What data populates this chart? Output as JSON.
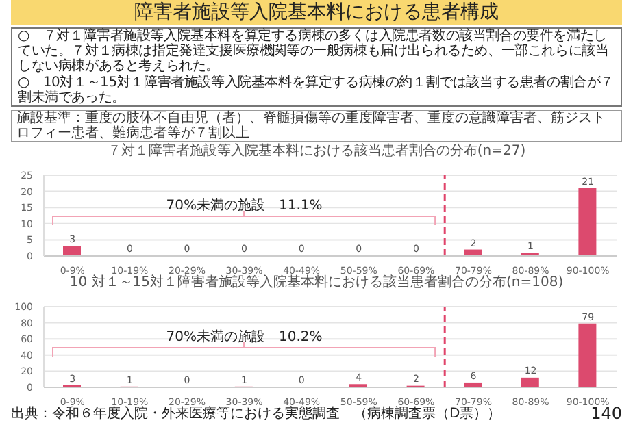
{
  "chart_data": [
    {
      "type": "other",
      "title": "障害者施設等入院基本料における患者構成",
      "annotations": [
        "○　７対１障害者施設等入院基本料を算定する病棟の多くは入院患者数の該当割合の要件を満たしていた。７対１病棟は指定発達支援医療機関等の一般病棟も届け出られるため、一部これらに該当しない病棟があると考えられた。",
        "○　10対１～15対１障害者施設等入院基本料を算定する病棟の約１割では該当する患者の割合が７割未満であった。",
        "施設基準：重度の肢体不自由児（者）、脊髄損傷等の重度障害者、重度の意識障害者、筋ジストロフィー患者、難病患者等が７割以上"
      ]
    },
    {
      "type": "bar",
      "title": "７対１障害者施設等入院基本料における該当患者割合の分布(n=27)",
      "categories": [
        "0-9%",
        "10-19%",
        "20-29%",
        "30-39%",
        "40-49%",
        "50-59%",
        "60-69%",
        "70-79%",
        "80-89%",
        "90-100%"
      ],
      "values": [
        3,
        0,
        0,
        0,
        0,
        0,
        0,
        2,
        1,
        21
      ],
      "color": "#dc4a6e",
      "ylim": [
        0,
        25
      ],
      "yticks": [
        0,
        5,
        10,
        15,
        20,
        25
      ],
      "grid": "y",
      "data_labels": true,
      "ref_lines": [
        {
          "axis": "x",
          "value": "70-79%",
          "color": "#e0446a",
          "line_style": "dashed"
        }
      ],
      "annotations": [
        "70%未満の施設　11.1%"
      ]
    },
    {
      "type": "bar",
      "title": "10 対１～15対１障害者施設等入院基本料における該当患者割合の分布(n=108)",
      "categories": [
        "0-9%",
        "10-19%",
        "20-29%",
        "30-39%",
        "40-49%",
        "50-59%",
        "60-69%",
        "70-79%",
        "80-89%",
        "90-100%"
      ],
      "values": [
        3,
        1,
        0,
        1,
        0,
        4,
        2,
        6,
        12,
        79
      ],
      "color": "#dc4a6e",
      "ylim": [
        0,
        100
      ],
      "yticks": [
        0,
        20,
        40,
        60,
        80,
        100
      ],
      "grid": "y",
      "data_labels": true,
      "ref_lines": [
        {
          "axis": "x",
          "value": "70-79%",
          "color": "#e0446a",
          "line_style": "dashed"
        }
      ],
      "annotations": [
        "70%未満の施設　10.2%",
        "出典：令和６年度入院・外来医療等における実態調査　（病棟調査票（D票））",
        "140"
      ]
    }
  ]
}
